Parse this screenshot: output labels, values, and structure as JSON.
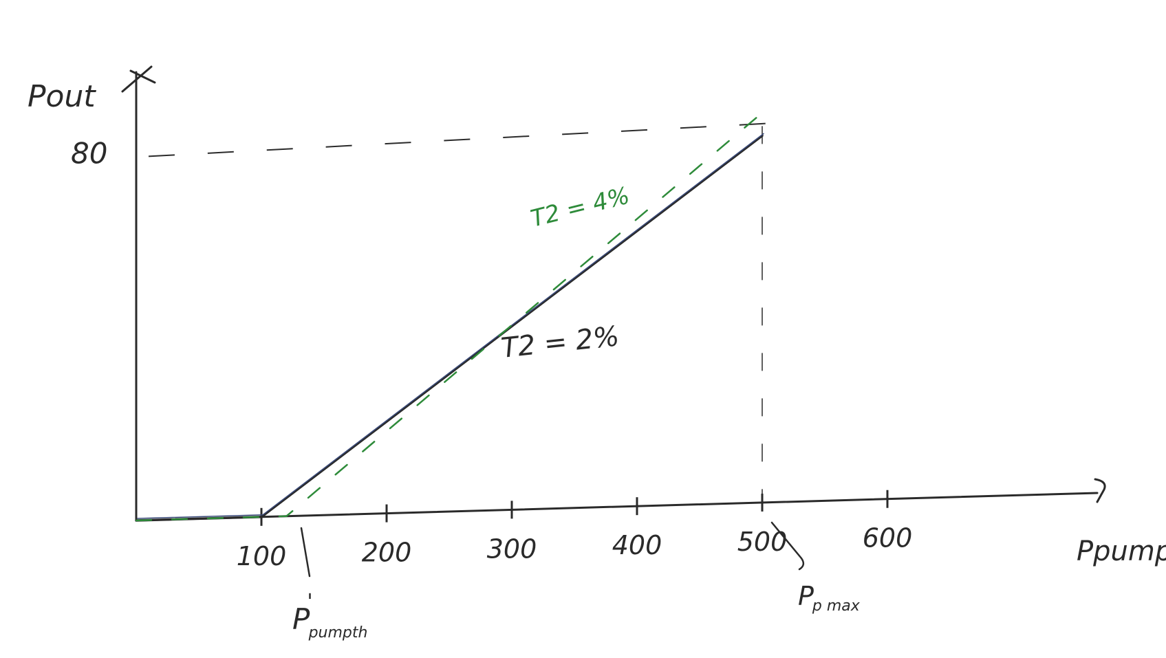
{
  "chart_data": {
    "type": "line",
    "xlabel": "Ppump",
    "ylabel": "Pout",
    "x_ticks": [
      100,
      200,
      300,
      400,
      500,
      600
    ],
    "y_ticks": [
      80
    ],
    "xlim": [
      0,
      600
    ],
    "ylim": [
      0,
      80
    ],
    "grid": false,
    "series": [
      {
        "name": "T2 = 2%",
        "color": "#2a2a2a",
        "style": "solid",
        "x": [
          0,
          100,
          500
        ],
        "y": [
          0,
          0,
          80
        ]
      },
      {
        "name": "T2 = 4%",
        "color": "#2e8b3a",
        "style": "dashed",
        "x": [
          0,
          120,
          500
        ],
        "y": [
          0,
          0,
          85
        ]
      }
    ],
    "annotations": {
      "threshold": {
        "main": "P",
        "sub": "pumpth",
        "prime": "'"
      },
      "max": {
        "main": "P",
        "sub": "p max"
      }
    },
    "reference_lines": {
      "y_value": 80,
      "x_value": 500
    }
  }
}
